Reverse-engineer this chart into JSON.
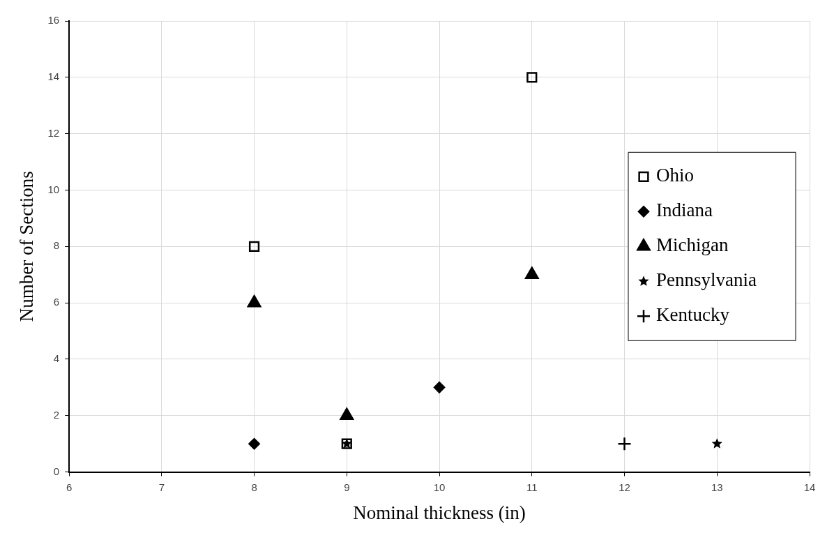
{
  "chart_data": {
    "type": "scatter",
    "xlabel": "Nominal thickness (in)",
    "ylabel": "Number of Sections",
    "xlim": [
      6,
      14
    ],
    "xticks": [
      6,
      7,
      8,
      9,
      10,
      11,
      12,
      13,
      14
    ],
    "ylim": [
      0,
      16
    ],
    "yticks": [
      0,
      2,
      4,
      6,
      8,
      10,
      12,
      14,
      16
    ],
    "grid": true,
    "legend": "right",
    "series": [
      {
        "name": "Ohio",
        "color": "#000000",
        "marker": "square",
        "x": [
          8,
          9,
          11
        ],
        "values": [
          8,
          1,
          14
        ]
      },
      {
        "name": "Indiana",
        "color": "#000000",
        "marker": "diamond",
        "x": [
          8,
          10
        ],
        "values": [
          1,
          3
        ]
      },
      {
        "name": "Michigan",
        "color": "#000000",
        "marker": "triangle",
        "x": [
          8,
          9,
          11
        ],
        "values": [
          6,
          2,
          7
        ]
      },
      {
        "name": "Pennsylvania",
        "color": "#000000",
        "marker": "star",
        "x": [
          9,
          13
        ],
        "values": [
          1,
          1
        ]
      },
      {
        "name": "Kentucky",
        "color": "#000000",
        "marker": "cross",
        "x": [
          12
        ],
        "values": [
          1
        ]
      }
    ]
  }
}
